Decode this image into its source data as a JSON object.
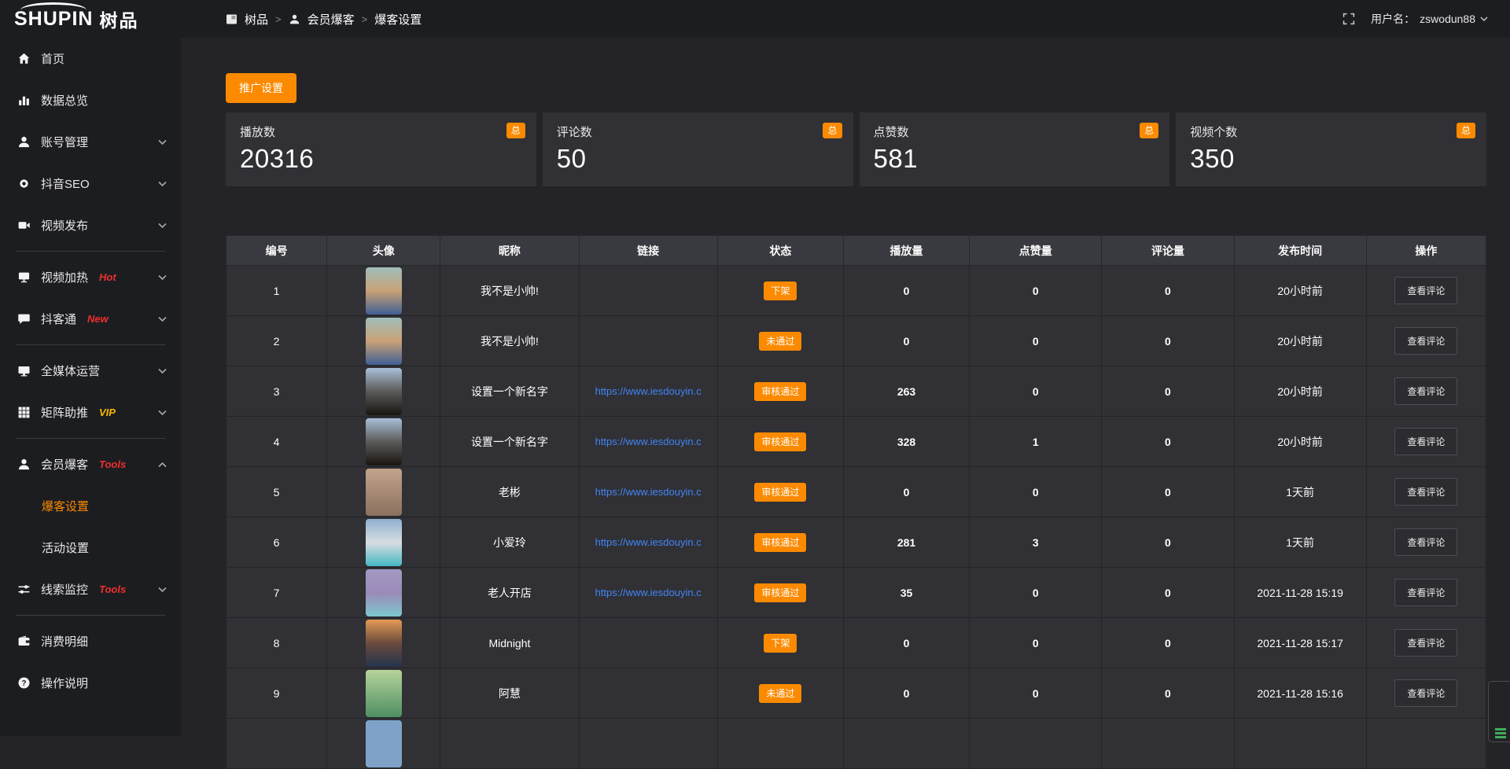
{
  "brand": {
    "logo_en": "SHUPIN",
    "logo_zh": "树品"
  },
  "header": {
    "breadcrumb": [
      {
        "label": "树品"
      },
      {
        "label": "会员爆客"
      },
      {
        "label": "爆客设置"
      }
    ],
    "separator": ">",
    "username_label": "用户名：",
    "username": "zswodun88"
  },
  "sidebar": {
    "items": [
      {
        "label": "首页"
      },
      {
        "label": "数据总览"
      },
      {
        "label": "账号管理",
        "chevron": "down"
      },
      {
        "label": "抖音SEO",
        "chevron": "down"
      },
      {
        "label": "视频发布",
        "chevron": "down"
      },
      {
        "label": "视频加热",
        "badge": "Hot",
        "chevron": "down"
      },
      {
        "label": "抖客通",
        "badge": "New",
        "chevron": "down"
      },
      {
        "label": "全媒体运营",
        "chevron": "down"
      },
      {
        "label": "矩阵助推",
        "badge": "VIP",
        "chevron": "down"
      },
      {
        "label": "会员爆客",
        "badge": "Tools",
        "chevron": "up",
        "children": [
          {
            "label": "爆客设置",
            "active": true
          },
          {
            "label": "活动设置",
            "active": false
          }
        ]
      },
      {
        "label": "线索监控",
        "badge": "Tools",
        "chevron": "down"
      },
      {
        "label": "消费明细"
      },
      {
        "label": "操作说明"
      }
    ]
  },
  "toolbar": {
    "promo_button": "推广设置"
  },
  "stats": [
    {
      "label": "播放数",
      "value": "20316",
      "badge": "总"
    },
    {
      "label": "评论数",
      "value": "50",
      "badge": "总"
    },
    {
      "label": "点赞数",
      "value": "581",
      "badge": "总"
    },
    {
      "label": "视频个数",
      "value": "350",
      "badge": "总"
    }
  ],
  "table": {
    "columns": [
      "编号",
      "头像",
      "昵称",
      "链接",
      "状态",
      "播放量",
      "点赞量",
      "评论量",
      "发布时间",
      "操作"
    ],
    "action_label": "查看评论",
    "rows": [
      {
        "id": "1",
        "nickname": "我不是小帅!",
        "link": "",
        "status": "下架",
        "plays": "0",
        "likes": "0",
        "comments": "0",
        "time": "20小时前",
        "avatar": [
          "#9fbfb9",
          "#c9a176",
          "#3e5f94"
        ]
      },
      {
        "id": "2",
        "nickname": "我不是小帅!",
        "link": "",
        "status": "未通过",
        "plays": "0",
        "likes": "0",
        "comments": "0",
        "time": "20小时前",
        "avatar": [
          "#9fbfb9",
          "#c9a176",
          "#3e5f94"
        ]
      },
      {
        "id": "3",
        "nickname": "设置一个新名字",
        "link": "https://www.iesdouyin.c",
        "status": "审核通过",
        "plays": "263",
        "likes": "0",
        "comments": "0",
        "time": "20小时前",
        "avatar": [
          "#a9bfd8",
          "#5a5a58",
          "#191410"
        ]
      },
      {
        "id": "4",
        "nickname": "设置一个新名字",
        "link": "https://www.iesdouyin.c",
        "status": "审核通过",
        "plays": "328",
        "likes": "1",
        "comments": "0",
        "time": "20小时前",
        "avatar": [
          "#a9bfd8",
          "#5a5a58",
          "#191410"
        ]
      },
      {
        "id": "5",
        "nickname": "老彬",
        "link": "https://www.iesdouyin.c",
        "status": "审核通过",
        "plays": "0",
        "likes": "0",
        "comments": "0",
        "time": "1天前",
        "avatar": [
          "#c2a48c",
          "#8a705e"
        ]
      },
      {
        "id": "6",
        "nickname": "小爱玲",
        "link": "https://www.iesdouyin.c",
        "status": "审核通过",
        "plays": "281",
        "likes": "3",
        "comments": "0",
        "time": "1天前",
        "avatar": [
          "#8fb0d0",
          "#d8dde2",
          "#45b8c4"
        ]
      },
      {
        "id": "7",
        "nickname": "老人开店",
        "link": "https://www.iesdouyin.c",
        "status": "审核通过",
        "plays": "35",
        "likes": "0",
        "comments": "0",
        "time": "2021-11-28 15:19",
        "avatar": [
          "#a59ac4",
          "#9a8ab8",
          "#7ec8cd"
        ]
      },
      {
        "id": "8",
        "nickname": "Midnight",
        "link": "",
        "status": "下架",
        "plays": "0",
        "likes": "0",
        "comments": "0",
        "time": "2021-11-28 15:17",
        "avatar": [
          "#e59b55",
          "#6b4a3e",
          "#23344c"
        ]
      },
      {
        "id": "9",
        "nickname": "阿慧",
        "link": "",
        "status": "未通过",
        "plays": "0",
        "likes": "0",
        "comments": "0",
        "time": "2021-11-28 15:16",
        "avatar": [
          "#b5d49a",
          "#4f8f63"
        ]
      },
      {
        "id": "",
        "nickname": "",
        "link": "",
        "status": "",
        "plays": "",
        "likes": "",
        "comments": "",
        "time": "",
        "avatar": [
          "#7fa3c8",
          "#7fa3c8"
        ]
      }
    ]
  },
  "colors": {
    "accent_orange": "#fb8a00",
    "link_blue": "#4285f4",
    "badge_red": "#ef2f2f",
    "badge_gold": "#f5b800",
    "sidebar_bg": "#1c1d20",
    "content_bg": "#242428",
    "card_bg": "#303035",
    "table_header_bg": "#393940"
  }
}
